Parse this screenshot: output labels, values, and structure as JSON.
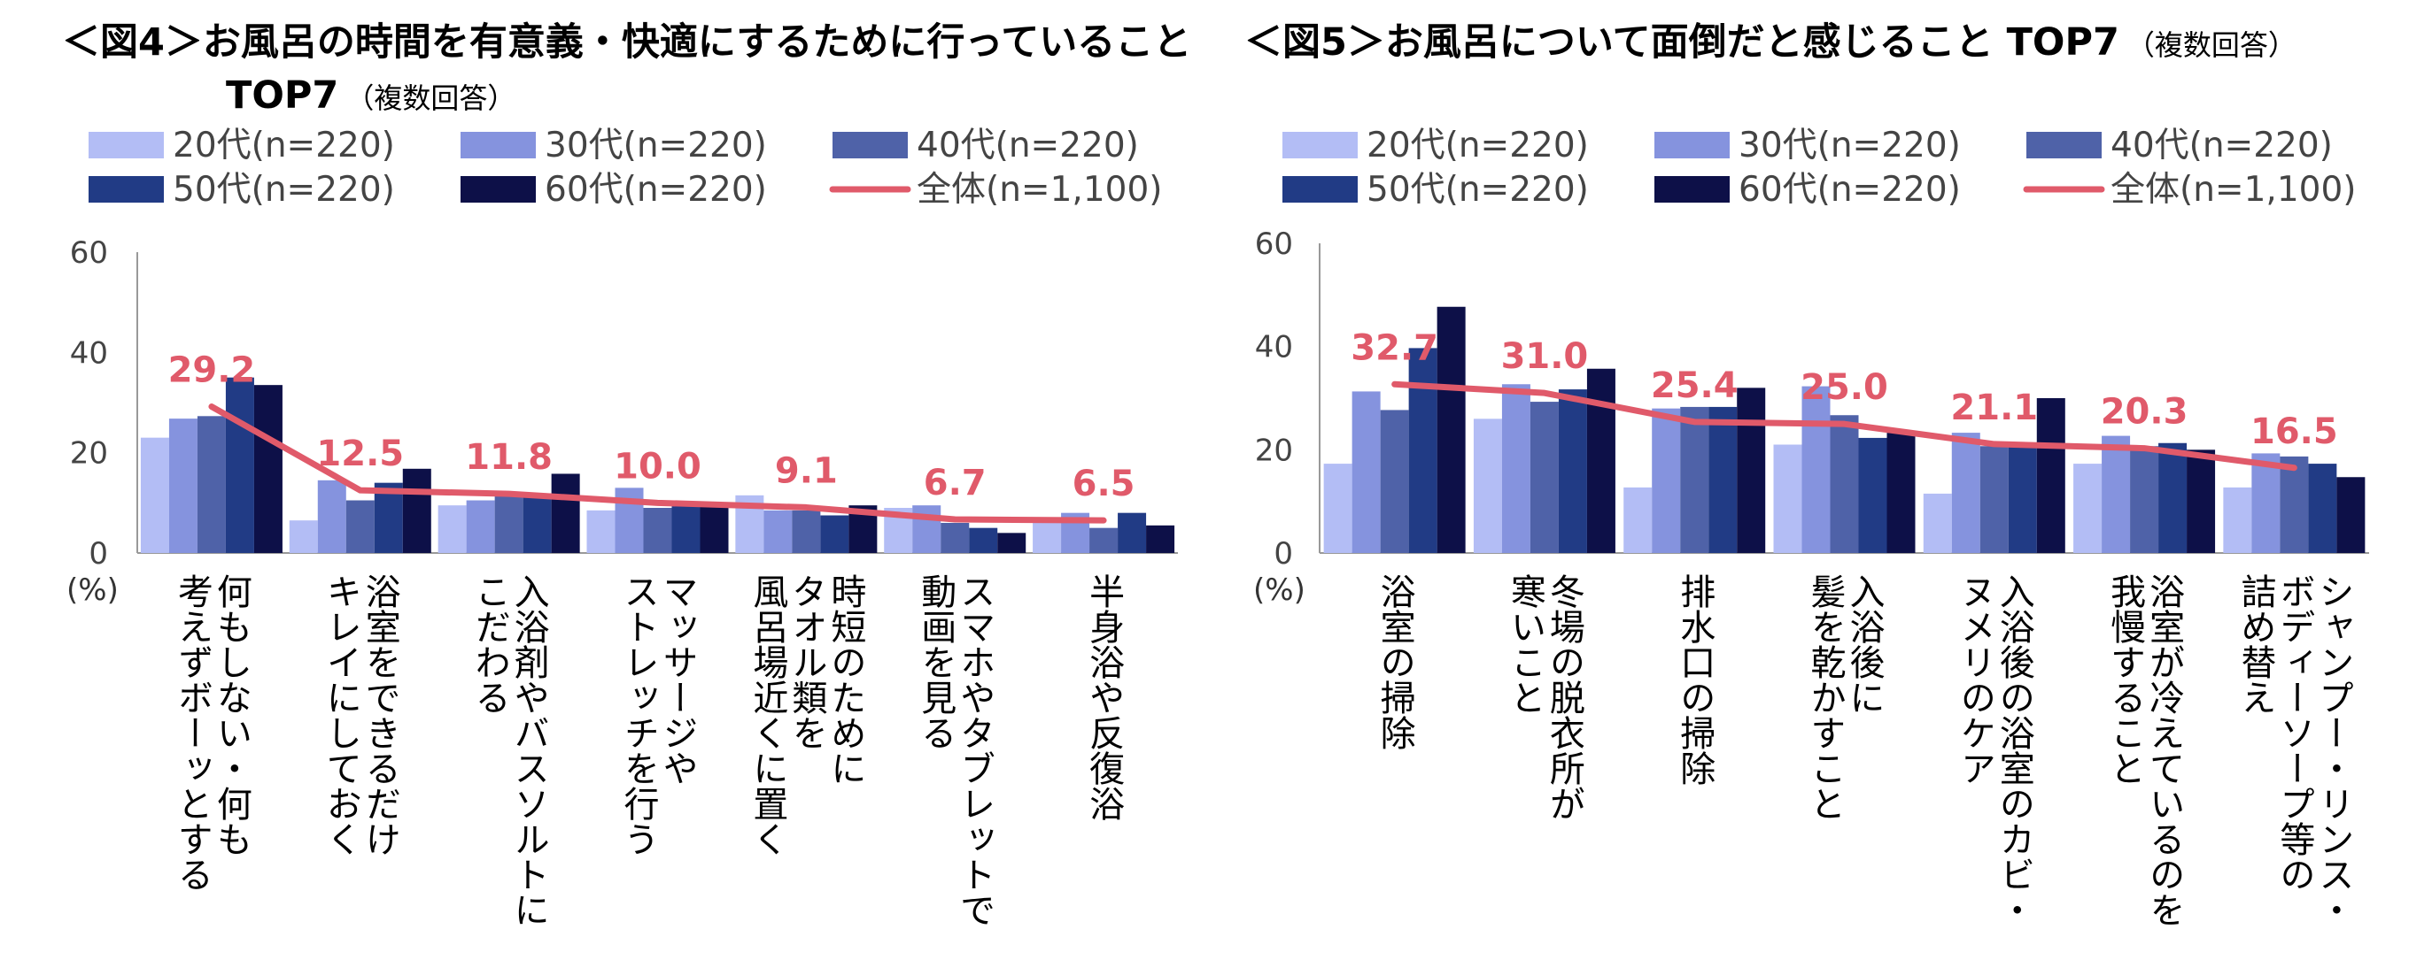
{
  "colors": {
    "20s": "#b3bdf5",
    "30s": "#8593de",
    "40s": "#4f62a8",
    "50s": "#213b85",
    "60s": "#0d1048",
    "total": "#e05a6a"
  },
  "chart_data": [
    {
      "type": "bar",
      "title_line1": "＜図4＞お風呂の時間を有意義・快適にするために行っていること",
      "title_line2": "TOP7",
      "subtitle": "（複数回答）",
      "ylabel": "(%)",
      "ylim": [
        0,
        60
      ],
      "yticks": [
        "0",
        "20",
        "40",
        "60"
      ],
      "legend": [
        "20代(n=220)",
        "30代(n=220)",
        "40代(n=220)",
        "50代(n=220)",
        "60代(n=220)",
        "全体(n=1,100)"
      ],
      "legend_position": "top",
      "categories": [
        [
          "何もしない・何も",
          "考えずボーッとする"
        ],
        [
          "浴室をできるだけ",
          "キレイにしておく"
        ],
        [
          "入浴剤やバスソルトに",
          "こだわる"
        ],
        [
          "マッサージや",
          "ストレッチを行う"
        ],
        [
          "時短のために",
          "タオル類を",
          "風呂場近くに置く"
        ],
        [
          "スマホやタブレットで",
          "動画を見る"
        ],
        [
          "半身浴や反復浴"
        ]
      ],
      "series": [
        {
          "name": "20代(n=220)",
          "values": [
            23.0,
            6.5,
            9.5,
            8.5,
            11.5,
            9.0,
            6.0
          ]
        },
        {
          "name": "30代(n=220)",
          "values": [
            26.8,
            14.5,
            10.5,
            13.0,
            8.5,
            9.5,
            8.0
          ]
        },
        {
          "name": "40代(n=220)",
          "values": [
            27.3,
            10.5,
            11.5,
            9.0,
            8.5,
            6.0,
            5.0
          ]
        },
        {
          "name": "50代(n=220)",
          "values": [
            35.0,
            14.0,
            11.5,
            10.0,
            7.5,
            5.0,
            8.0
          ]
        },
        {
          "name": "60代(n=220)",
          "values": [
            33.5,
            16.8,
            15.8,
            10.0,
            9.5,
            4.0,
            5.5
          ]
        }
      ],
      "line": {
        "name": "全体(n=1,100)",
        "values": [
          29.2,
          12.5,
          11.8,
          10.0,
          9.1,
          6.7,
          6.5
        ]
      },
      "data_labels": [
        "29.2",
        "12.5",
        "11.8",
        "10.0",
        "9.1",
        "6.7",
        "6.5"
      ]
    },
    {
      "type": "bar",
      "title_line1": "＜図5＞お風呂について面倒だと感じること TOP7",
      "subtitle": "（複数回答）",
      "ylabel": "(%)",
      "ylim": [
        0,
        60
      ],
      "yticks": [
        "0",
        "20",
        "40",
        "60"
      ],
      "legend": [
        "20代(n=220)",
        "30代(n=220)",
        "40代(n=220)",
        "50代(n=220)",
        "60代(n=220)",
        "全体(n=1,100)"
      ],
      "legend_position": "top",
      "categories": [
        [
          "浴室の掃除"
        ],
        [
          "冬場の脱衣所が",
          "寒いこと"
        ],
        [
          "排水口の掃除"
        ],
        [
          "入浴後に",
          "髪を乾かすこと"
        ],
        [
          "入浴後の浴室のカビ・",
          "ヌメリのケア"
        ],
        [
          "浴室が冷えているのを",
          "我慢すること"
        ],
        [
          "シャンプー・リンス・",
          "ボディーソープ等の",
          "詰め替え"
        ]
      ],
      "series": [
        {
          "name": "20代(n=220)",
          "values": [
            17.3,
            26.0,
            12.7,
            21.0,
            11.5,
            17.3,
            12.7
          ]
        },
        {
          "name": "30代(n=220)",
          "values": [
            31.3,
            32.7,
            28.0,
            32.3,
            23.3,
            22.7,
            19.3
          ]
        },
        {
          "name": "40代(n=220)",
          "values": [
            27.7,
            29.3,
            28.3,
            26.7,
            20.7,
            20.7,
            18.7
          ]
        },
        {
          "name": "50代(n=220)",
          "values": [
            39.7,
            31.7,
            28.3,
            22.3,
            20.7,
            21.3,
            17.3
          ]
        },
        {
          "name": "60代(n=220)",
          "values": [
            47.7,
            35.7,
            32.0,
            23.3,
            30.0,
            20.0,
            14.7
          ]
        }
      ],
      "line": {
        "name": "全体(n=1,100)",
        "values": [
          32.7,
          31.0,
          25.4,
          25.0,
          21.1,
          20.3,
          16.5
        ]
      },
      "data_labels": [
        "32.7",
        "31.0",
        "25.4",
        "25.0",
        "21.1",
        "20.3",
        "16.5"
      ]
    }
  ]
}
